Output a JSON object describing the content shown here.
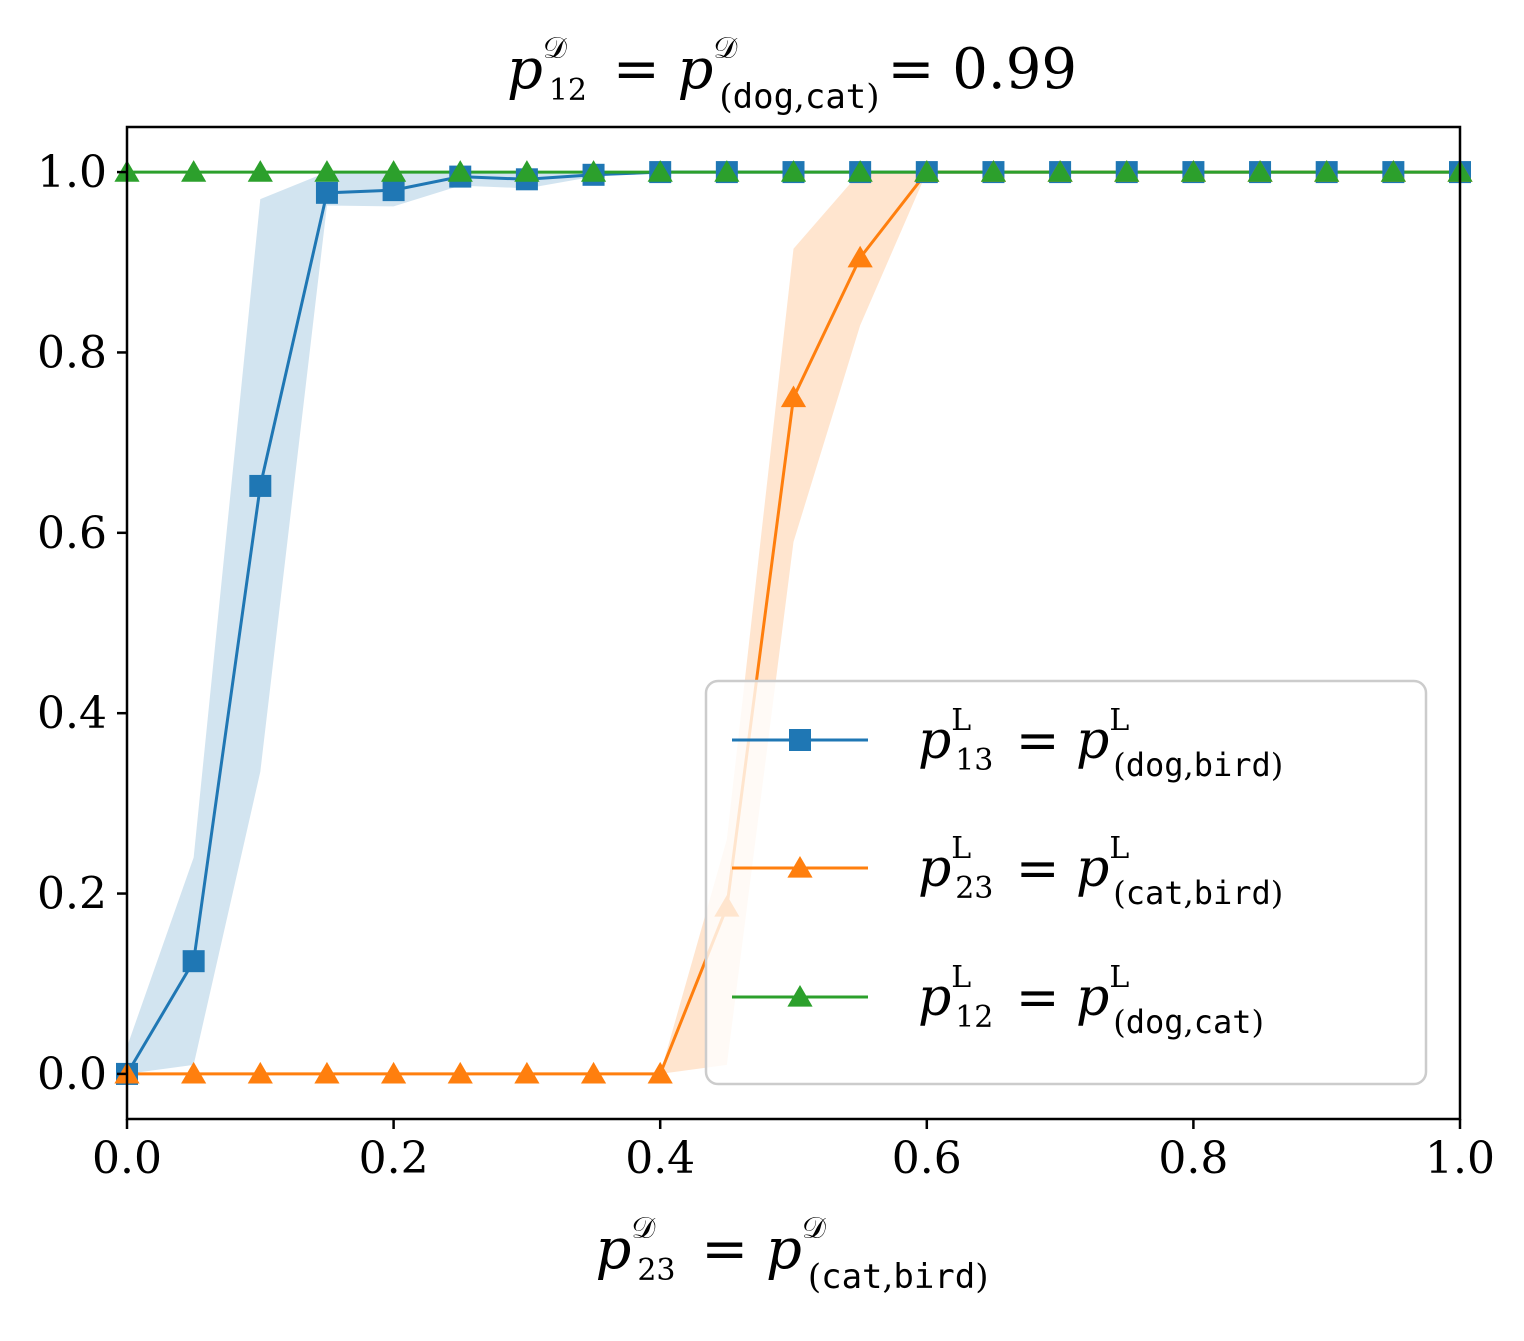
{
  "chart_data": {
    "type": "line",
    "title": {
      "var": "p",
      "sup": "𝒟",
      "sub1": "12",
      "open": "(",
      "mono": "dog",
      "comma": ",",
      "mono2": "cat",
      "close": ")",
      "value": "= 0.99"
    },
    "xlabel": {
      "var": "p",
      "sup": "𝒟",
      "sub1": "23",
      "open": "(",
      "mono": "cat",
      "comma": ",",
      "mono2": "bird",
      "close": ")"
    },
    "xlim": [
      0.0,
      1.0
    ],
    "ylim": [
      -0.05,
      1.05
    ],
    "xticks": [
      0.0,
      0.2,
      0.4,
      0.6,
      0.8,
      1.0
    ],
    "xtick_labels": [
      "0.0",
      "0.2",
      "0.4",
      "0.6",
      "0.8",
      "1.0"
    ],
    "yticks": [
      0.0,
      0.2,
      0.4,
      0.6,
      0.8,
      1.0
    ],
    "ytick_labels": [
      "0.0",
      "0.2",
      "0.4",
      "0.6",
      "0.8",
      "1.0"
    ],
    "x": [
      0.0,
      0.05,
      0.1,
      0.15,
      0.2,
      0.25,
      0.3,
      0.35,
      0.4,
      0.45,
      0.5,
      0.55,
      0.6,
      0.65,
      0.7,
      0.75,
      0.8,
      0.85,
      0.9,
      0.95,
      1.0
    ],
    "series": [
      {
        "name": "p13 = p(dog,bird)",
        "legend": {
          "sup": "L",
          "sub1": "13",
          "mono": "dog",
          "mono2": "bird"
        },
        "color": "#1f77b4",
        "marker": "square",
        "values": [
          0.0,
          0.125,
          0.652,
          0.977,
          0.98,
          0.995,
          0.992,
          0.997,
          1.0,
          1.0,
          1.0,
          1.0,
          1.0,
          1.0,
          1.0,
          1.0,
          1.0,
          1.0,
          1.0,
          1.0,
          1.0
        ],
        "band_upper": [
          0.03,
          0.24,
          0.97,
          1.0,
          1.0,
          1.0,
          1.0,
          1.0,
          1.0,
          1.0,
          1.0,
          1.0,
          1.0,
          1.0,
          1.0,
          1.0,
          1.0,
          1.0,
          1.0,
          1.0,
          1.0
        ],
        "band_lower": [
          0.0,
          0.01,
          0.335,
          0.963,
          0.962,
          0.985,
          0.982,
          0.995,
          1.0,
          1.0,
          1.0,
          1.0,
          1.0,
          1.0,
          1.0,
          1.0,
          1.0,
          1.0,
          1.0,
          1.0,
          1.0
        ]
      },
      {
        "name": "p23 = p(cat,bird)",
        "legend": {
          "sup": "L",
          "sub1": "23",
          "mono": "cat",
          "mono2": "bird"
        },
        "color": "#ff7f0e",
        "marker": "triangle",
        "values": [
          0.0,
          0.0,
          0.0,
          0.0,
          0.0,
          0.0,
          0.0,
          0.0,
          0.0,
          0.185,
          0.75,
          0.905,
          1.0,
          1.0,
          1.0,
          1.0,
          1.0,
          1.0,
          1.0,
          1.0,
          1.0
        ],
        "band_upper": [
          0.0,
          0.0,
          0.0,
          0.0,
          0.0,
          0.0,
          0.0,
          0.0,
          0.0,
          0.26,
          0.915,
          1.0,
          1.0,
          1.0,
          1.0,
          1.0,
          1.0,
          1.0,
          1.0,
          1.0,
          1.0
        ],
        "band_lower": [
          0.0,
          0.0,
          0.0,
          0.0,
          0.0,
          0.0,
          0.0,
          0.0,
          0.0,
          0.01,
          0.59,
          0.83,
          1.0,
          1.0,
          1.0,
          1.0,
          1.0,
          1.0,
          1.0,
          1.0,
          1.0
        ]
      },
      {
        "name": "p12 = p(dog,cat)",
        "legend": {
          "sup": "L",
          "sub1": "12",
          "mono": "dog",
          "mono2": "cat"
        },
        "color": "#2ca02c",
        "marker": "triangle",
        "values": [
          1.0,
          1.0,
          1.0,
          1.0,
          1.0,
          1.0,
          1.0,
          1.0,
          1.0,
          1.0,
          1.0,
          1.0,
          1.0,
          1.0,
          1.0,
          1.0,
          1.0,
          1.0,
          1.0,
          1.0,
          1.0
        ]
      }
    ],
    "legend_location": "lower-right",
    "grid": false
  }
}
